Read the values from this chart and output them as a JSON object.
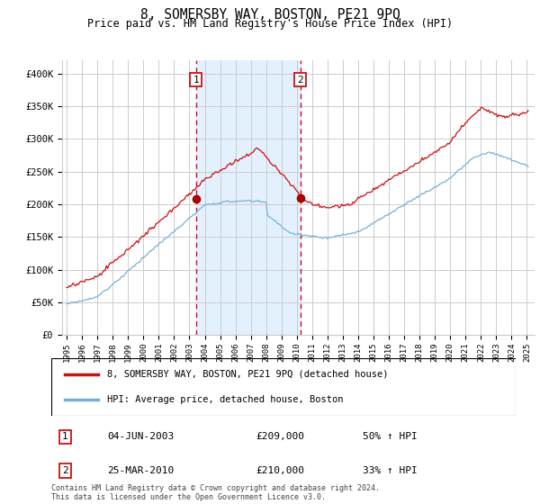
{
  "title": "8, SOMERSBY WAY, BOSTON, PE21 9PQ",
  "subtitle": "Price paid vs. HM Land Registry's House Price Index (HPI)",
  "ylim": [
    0,
    420000
  ],
  "yticks": [
    0,
    50000,
    100000,
    150000,
    200000,
    250000,
    300000,
    350000,
    400000
  ],
  "ytick_labels": [
    "£0",
    "£50K",
    "£100K",
    "£150K",
    "£200K",
    "£250K",
    "£300K",
    "£350K",
    "£400K"
  ],
  "sale1_date_x": 2003.42,
  "sale1_price": 209000,
  "sale1_label": "04-JUN-2003",
  "sale1_amount": "£209,000",
  "sale1_hpi": "50% ↑ HPI",
  "sale2_date_x": 2010.22,
  "sale2_price": 210000,
  "sale2_label": "25-MAR-2010",
  "sale2_amount": "£210,000",
  "sale2_hpi": "33% ↑ HPI",
  "hpi_line_color": "#7bafd4",
  "price_line_color": "#cc1111",
  "sale_dot_color": "#aa0000",
  "shaded_region_color": "#ddeeff",
  "grid_color": "#cccccc",
  "background_color": "#ffffff",
  "legend_entry1": "8, SOMERSBY WAY, BOSTON, PE21 9PQ (detached house)",
  "legend_entry2": "HPI: Average price, detached house, Boston",
  "footer": "Contains HM Land Registry data © Crown copyright and database right 2024.\nThis data is licensed under the Open Government Licence v3.0.",
  "xlim_start": 1994.7,
  "xlim_end": 2025.5
}
